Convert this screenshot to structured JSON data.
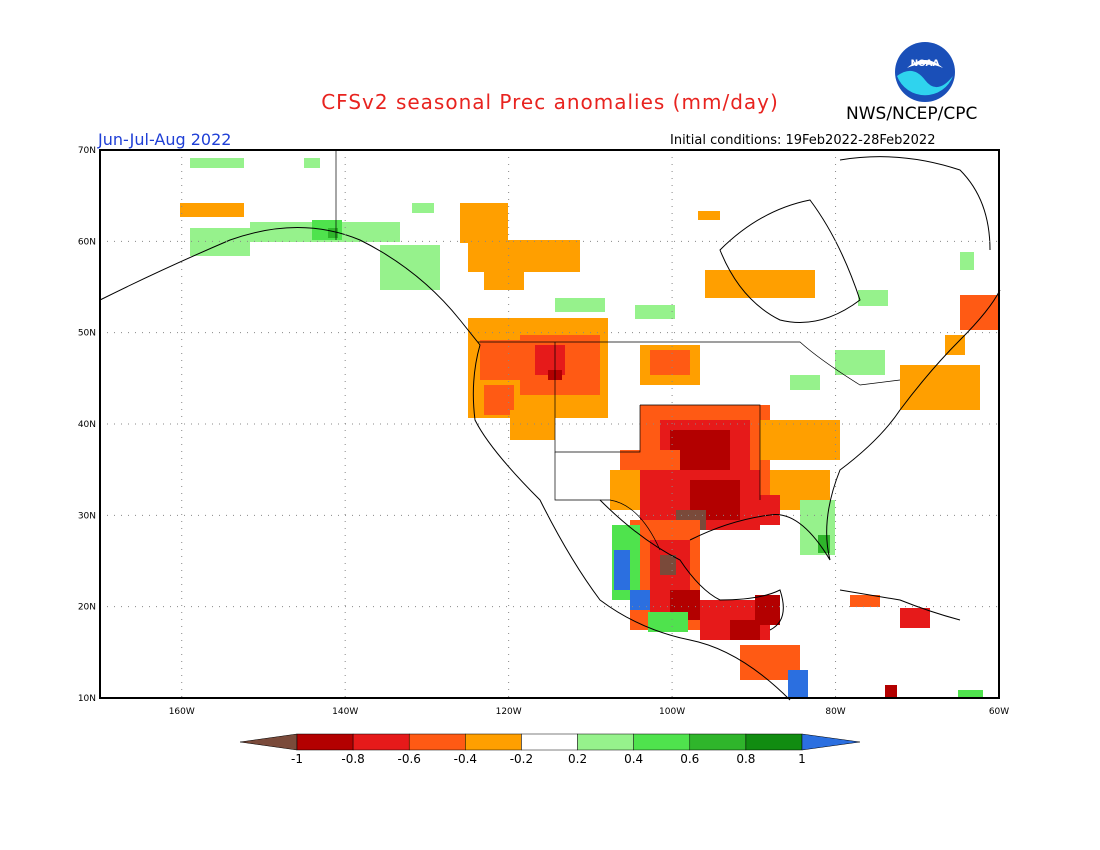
{
  "header": {
    "title": "CFSv2 seasonal Prec anomalies (mm/day)",
    "org": "NWS/NCEP/CPC",
    "season": "Jun-Jul-Aug 2022",
    "initial_conditions": "Initial conditions: 19Feb2022-28Feb2022",
    "logo_text": "NOAA"
  },
  "axes": {
    "lat_labels": [
      "70N",
      "60N",
      "50N",
      "40N",
      "30N",
      "20N",
      "10N"
    ],
    "lon_labels": [
      "160W",
      "140W",
      "120W",
      "100W",
      "80W",
      "60W"
    ],
    "lon_range": [
      -170,
      -60
    ],
    "lat_range": [
      10,
      70
    ]
  },
  "colorbar": {
    "labels": [
      "-1",
      "-0.8",
      "-0.6",
      "-0.4",
      "-0.2",
      "0.2",
      "0.4",
      "0.6",
      "0.8",
      "1"
    ],
    "colors": [
      "#7a4a3a",
      "#b30000",
      "#e61a1a",
      "#ff5a14",
      "#ff9f00",
      "#ffffff",
      "#96f28c",
      "#4fe34d",
      "#2fb52b",
      "#118c11",
      "#2b6fe0"
    ]
  },
  "colors": {
    "frame": "#000000",
    "grid": "#888888",
    "title": "#e8231f",
    "season": "#1f3fd6"
  }
}
